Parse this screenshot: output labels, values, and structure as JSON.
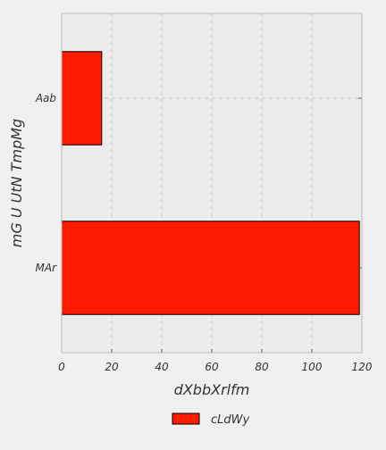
{
  "chart_data": {
    "type": "bar",
    "orientation": "horizontal",
    "categories": [
      "MAr",
      "Aab"
    ],
    "series": [
      {
        "name": "cLdWy",
        "values": [
          119,
          16
        ],
        "color": "#ff1a00"
      }
    ],
    "xlabel": "dXbbXrlfm",
    "ylabel": "mG U UtN TmpMg",
    "xlim": [
      0,
      120
    ],
    "xticks": [
      0,
      20,
      40,
      60,
      80,
      100,
      120
    ],
    "grid": true,
    "legend_position": "bottom-center"
  },
  "colors": {
    "background": "#f0f0f0",
    "plot_background": "#ececec",
    "bar": "#ff1a00",
    "bar_edge": "#000000",
    "grid": "#c8c8c8",
    "frame": "#bcbcbc"
  }
}
